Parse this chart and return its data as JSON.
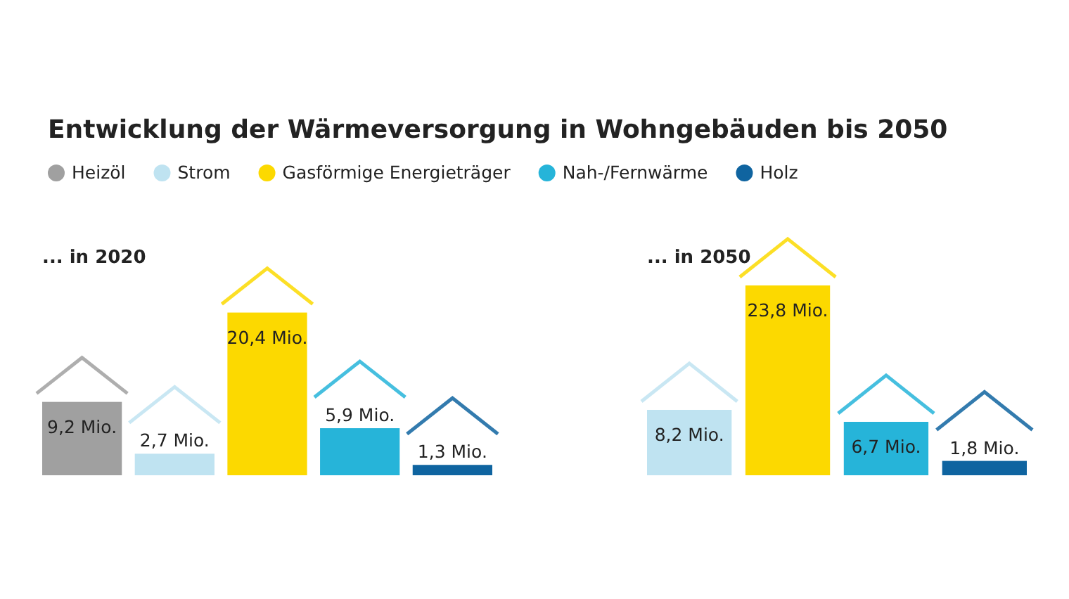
{
  "chart_data": [
    {
      "type": "bar",
      "title": "Entwicklung der Wärmeversorgung in Wohngebäuden bis 2050",
      "subtitle": "... in 2020",
      "categories": [
        null
      ],
      "legend": "top",
      "series": [
        {
          "name": "Heizöl",
          "color": "#a0a0a0",
          "values": [
            9.2
          ],
          "value_labels": [
            "9,2 Mio."
          ]
        },
        {
          "name": "Strom",
          "color": "#bfe3f1",
          "values": [
            2.7
          ],
          "value_labels": [
            "2,7 Mio."
          ]
        },
        {
          "name": "Gasförmige Energieträger",
          "color": "#fcd900",
          "values": [
            20.4
          ],
          "value_labels": [
            "20,4 Mio."
          ]
        },
        {
          "name": "Nah-/Fernwärme",
          "color": "#26b4d9",
          "values": [
            5.9
          ],
          "value_labels": [
            "5,9 Mio."
          ]
        },
        {
          "name": "Holz",
          "color": "#0f64a0",
          "values": [
            1.3
          ],
          "value_labels": [
            "1,3 Mio."
          ]
        }
      ]
    },
    {
      "type": "bar",
      "title": "... in 2050",
      "categories": [
        null
      ],
      "series": [
        {
          "color": "#bfe3f1",
          "values": [
            8.2
          ],
          "value_labels": [
            "8,2 Mio."
          ]
        },
        {
          "color": "#fcd900",
          "values": [
            23.8
          ],
          "value_labels": [
            "23,8 Mio."
          ]
        },
        {
          "color": "#26b4d9",
          "values": [
            6.7
          ],
          "value_labels": [
            "6,7 Mio."
          ]
        },
        {
          "color": "#0f64a0",
          "values": [
            1.8
          ],
          "value_labels": [
            "1,8 Mio."
          ]
        }
      ]
    }
  ]
}
